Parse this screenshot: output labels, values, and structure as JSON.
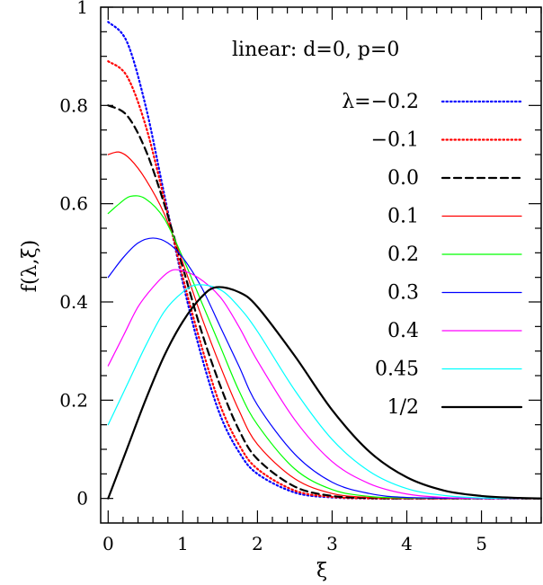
{
  "chart_data": {
    "type": "line",
    "title": "",
    "annotation": "linear:  d=0,  p=0",
    "xlabel": "ξ",
    "ylabel": "f(λ,ξ)",
    "xlim": [
      -0.1,
      5.8
    ],
    "ylim": [
      -0.05,
      1.0
    ],
    "xticks": [
      0,
      1,
      2,
      3,
      4,
      5
    ],
    "xtick_labels": [
      "0",
      "1",
      "2",
      "3",
      "4",
      "5"
    ],
    "yticks": [
      0,
      0.2,
      0.4,
      0.6,
      0.8,
      1
    ],
    "ytick_labels": [
      "0",
      "0.2",
      "0.4",
      "0.6",
      "0.8",
      "1"
    ],
    "grid": false,
    "legend_position": "right",
    "series": [
      {
        "name": "λ=−0.2",
        "color": "#0000ff",
        "style": "dotted",
        "x": [
          0,
          0.25,
          0.5,
          0.75,
          1.0,
          1.25,
          1.5,
          1.75,
          2.0,
          2.5,
          3.0,
          3.5,
          4.0,
          5.0,
          5.8
        ],
        "y": [
          0.97,
          0.93,
          0.8,
          0.62,
          0.44,
          0.29,
          0.17,
          0.095,
          0.05,
          0.012,
          0.002,
          0.0,
          0.0,
          0.0,
          0.0
        ]
      },
      {
        "name": "−0.1",
        "color": "#ff0000",
        "style": "dotted",
        "x": [
          0,
          0.25,
          0.5,
          0.75,
          1.0,
          1.25,
          1.5,
          1.75,
          2.0,
          2.5,
          3.0,
          3.5,
          4.0,
          5.0,
          5.8
        ],
        "y": [
          0.89,
          0.86,
          0.76,
          0.61,
          0.45,
          0.31,
          0.19,
          0.11,
          0.06,
          0.016,
          0.003,
          0.0,
          0.0,
          0.0,
          0.0
        ]
      },
      {
        "name": "0.0",
        "color": "#000000",
        "style": "dashed",
        "x": [
          0,
          0.25,
          0.5,
          0.75,
          1.0,
          1.25,
          1.5,
          1.75,
          2.0,
          2.5,
          3.0,
          3.5,
          4.0,
          5.0,
          5.8
        ],
        "y": [
          0.8,
          0.78,
          0.71,
          0.6,
          0.47,
          0.34,
          0.23,
          0.14,
          0.08,
          0.024,
          0.005,
          0.001,
          0.0,
          0.0,
          0.0
        ]
      },
      {
        "name": "0.1",
        "color": "#ff0000",
        "style": "solid",
        "x": [
          0,
          0.15,
          0.3,
          0.5,
          0.75,
          1.0,
          1.25,
          1.5,
          1.75,
          2.0,
          2.5,
          3.0,
          3.5,
          4.0,
          5.0,
          5.8
        ],
        "y": [
          0.7,
          0.705,
          0.69,
          0.65,
          0.58,
          0.48,
          0.37,
          0.27,
          0.18,
          0.11,
          0.04,
          0.01,
          0.002,
          0.0,
          0.0,
          0.0
        ]
      },
      {
        "name": "0.2",
        "color": "#00ff00",
        "style": "solid",
        "x": [
          0,
          0.15,
          0.3,
          0.5,
          0.75,
          1.0,
          1.25,
          1.5,
          1.75,
          2.0,
          2.5,
          3.0,
          3.5,
          4.0,
          5.0,
          5.8
        ],
        "y": [
          0.58,
          0.6,
          0.615,
          0.61,
          0.57,
          0.49,
          0.4,
          0.31,
          0.22,
          0.15,
          0.06,
          0.018,
          0.004,
          0.001,
          0.0,
          0.0
        ]
      },
      {
        "name": "0.3",
        "color": "#0000ff",
        "style": "solid",
        "x": [
          0,
          0.2,
          0.4,
          0.6,
          0.8,
          1.0,
          1.25,
          1.5,
          1.75,
          2.0,
          2.5,
          3.0,
          3.5,
          4.0,
          5.0,
          5.8
        ],
        "y": [
          0.45,
          0.49,
          0.52,
          0.53,
          0.52,
          0.49,
          0.43,
          0.35,
          0.27,
          0.19,
          0.09,
          0.033,
          0.01,
          0.002,
          0.0,
          0.0
        ]
      },
      {
        "name": "0.4",
        "color": "#ff00ff",
        "style": "solid",
        "x": [
          0,
          0.2,
          0.4,
          0.6,
          0.8,
          0.95,
          1.2,
          1.5,
          1.75,
          2.0,
          2.5,
          3.0,
          3.5,
          4.0,
          4.5,
          5.0,
          5.8
        ],
        "y": [
          0.27,
          0.33,
          0.39,
          0.43,
          0.46,
          0.465,
          0.45,
          0.41,
          0.35,
          0.28,
          0.16,
          0.075,
          0.03,
          0.009,
          0.002,
          0.0,
          0.0
        ]
      },
      {
        "name": "0.45",
        "color": "#00ffff",
        "style": "solid",
        "x": [
          0,
          0.25,
          0.5,
          0.75,
          1.0,
          1.2,
          1.5,
          1.75,
          2.0,
          2.5,
          3.0,
          3.5,
          4.0,
          4.5,
          5.0,
          5.8
        ],
        "y": [
          0.15,
          0.23,
          0.31,
          0.38,
          0.42,
          0.435,
          0.425,
          0.39,
          0.34,
          0.22,
          0.12,
          0.055,
          0.02,
          0.006,
          0.001,
          0.0
        ]
      },
      {
        "name": "1/2",
        "color": "#000000",
        "style": "solid-thick",
        "x": [
          0,
          0.25,
          0.5,
          0.75,
          1.0,
          1.25,
          1.45,
          1.75,
          2.0,
          2.5,
          3.0,
          3.5,
          4.0,
          4.5,
          5.0,
          5.5,
          5.8
        ],
        "y": [
          0.0,
          0.1,
          0.2,
          0.29,
          0.36,
          0.41,
          0.43,
          0.42,
          0.39,
          0.29,
          0.18,
          0.095,
          0.043,
          0.016,
          0.005,
          0.001,
          0.0
        ]
      }
    ]
  }
}
